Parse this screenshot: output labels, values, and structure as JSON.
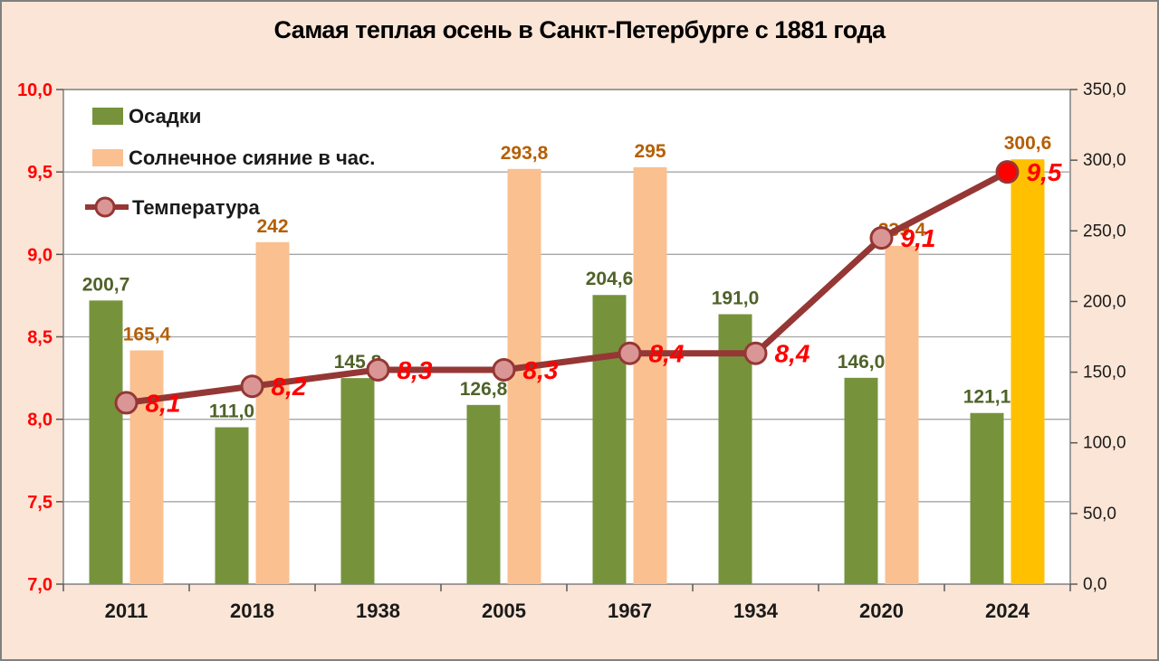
{
  "title": "Самая теплая осень в Санкт-Петербурге с 1881 года",
  "frame": {
    "background": "#FBE5D6",
    "border_color": "#808080",
    "plot_background": "#FFFFFF"
  },
  "chart_data": {
    "type": "combo-bar-line",
    "categories": [
      "2011",
      "2018",
      "1938",
      "2005",
      "1967",
      "1934",
      "2020",
      "2024"
    ],
    "series": [
      {
        "name": "Осадки",
        "type": "bar",
        "axis": "right",
        "color": "#76933C",
        "label_color": "#4F6228",
        "values": [
          200.7,
          111.0,
          145.8,
          126.8,
          204.6,
          191.0,
          146.0,
          121.1
        ],
        "labels": [
          "200,7",
          "111,0",
          "145,8",
          "126,8",
          "204,6",
          "191,0",
          "146,0",
          "121,1"
        ]
      },
      {
        "name": "Солнечное сияние в час.",
        "type": "bar",
        "axis": "right",
        "color": "#FAC090",
        "label_color": "#B45F06",
        "values": [
          165.4,
          242,
          null,
          293.8,
          295,
          null,
          239.4,
          300.6
        ],
        "labels": [
          "165,4",
          "242",
          "",
          "293,8",
          "295",
          "",
          "239,4",
          "300,6"
        ],
        "highlight": {
          "index": 7,
          "color": "#FFC000"
        }
      },
      {
        "name": "Температура",
        "type": "line",
        "axis": "left",
        "color": "#953735",
        "marker_color": "#D99694",
        "label_color": "#FF0000",
        "values": [
          8.1,
          8.2,
          8.3,
          8.3,
          8.4,
          8.4,
          9.1,
          9.5
        ],
        "labels": [
          "8,1",
          "8,2",
          "8,3",
          "8,3",
          "8,4",
          "8,4",
          "9,1",
          "9,5"
        ],
        "highlight": {
          "index": 7,
          "marker_color": "#FF0000"
        }
      }
    ],
    "left_axis": {
      "min": 7,
      "max": 10,
      "tick_step": 0.5,
      "tick_labels": [
        "10,0",
        "9,5",
        "9,0",
        "8,5",
        "8,0",
        "7,5",
        "7,0"
      ],
      "label_color": "#FF0000"
    },
    "right_axis": {
      "min": 0,
      "max": 350,
      "tick_step": 50,
      "tick_labels": [
        "350,0",
        "300,0",
        "250,0",
        "200,0",
        "150,0",
        "100,0",
        "50,0",
        "0,0"
      ],
      "label_color": "#1A1A1A"
    },
    "x_axis_label_color": "#1A1A1A",
    "grid": {
      "color": "#A6A6A6",
      "on": true,
      "source": "left-axis"
    },
    "legend": {
      "position": "top-left",
      "text_color": "#1A1A1A"
    }
  }
}
